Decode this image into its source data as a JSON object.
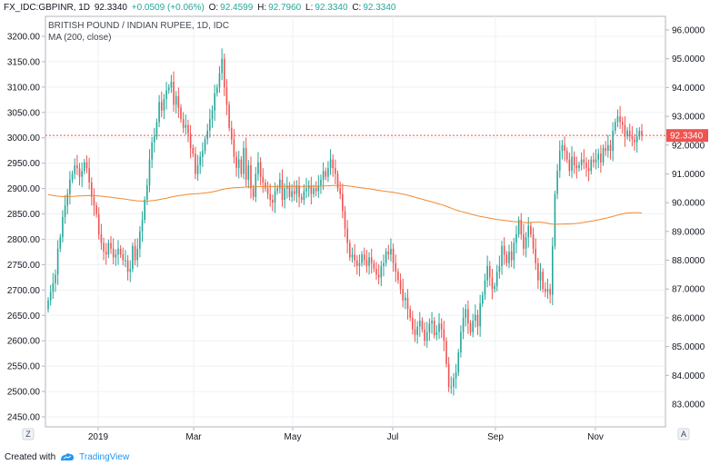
{
  "header": {
    "symbol": "FX_IDC:GBPINR, 1D",
    "last": "92.3340",
    "change": "+0.0509 (+0.06%)",
    "o_label": "O:",
    "o": "92.4599",
    "h_label": "H:",
    "h": "92.7960",
    "l_label": "L:",
    "l": "92.3340",
    "c_label": "C:",
    "c": "92.3340"
  },
  "legend": {
    "title": "BRITISH POUND / INDIAN RUPEE, 1D, IDC",
    "ma": "MA (200, close)"
  },
  "footer": {
    "created_with": "Created with",
    "brand": "TradingView"
  },
  "buttons": {
    "zoom": "Z",
    "auto": "A"
  },
  "colors": {
    "up": "#26a69a",
    "down": "#ef5350",
    "ma": "#f0882e",
    "price_line": "#ef5350",
    "price_badge": "#ef5350"
  },
  "chart_data": {
    "type": "candlestick",
    "left_axis": {
      "ticks": [
        2450,
        2500,
        2550,
        2600,
        2650,
        2700,
        2750,
        2800,
        2850,
        2900,
        2950,
        3000,
        3050,
        3100,
        3150,
        3200
      ],
      "labels": [
        "2450.00",
        "2500.00",
        "2550.00",
        "2600.00",
        "2650.00",
        "2700.00",
        "2750.00",
        "2800.00",
        "2850.00",
        "2900.00",
        "2950.00",
        "3000.00",
        "3050.00",
        "3100.00",
        "3150.00",
        "3200.00"
      ],
      "range": [
        2400,
        3225
      ]
    },
    "right_axis": {
      "ticks": [
        84,
        85,
        86,
        87,
        88,
        89,
        90,
        91,
        92,
        93,
        94,
        95,
        96
      ],
      "labels": [
        "84.0000",
        "85.0000",
        "86.0000",
        "87.0000",
        "88.0000",
        "89.0000",
        "90.0000",
        "91.0000",
        "92.0000",
        "93.0000",
        "94.0000",
        "95.0000",
        "96.0000"
      ],
      "extra_label": "83.0000",
      "current": "92.3340"
    },
    "x_labels": [
      "2019",
      "Mar",
      "May",
      "Jul",
      "Sep",
      "Nov"
    ],
    "ma_period": 200,
    "closes_inr": [
      86.6,
      86.9,
      87.2,
      87.5,
      88.4,
      88.8,
      89.5,
      89.9,
      90.3,
      90.8,
      91.0,
      91.3,
      91.2,
      90.9,
      91.1,
      91.4,
      91.2,
      90.7,
      90.2,
      89.9,
      89.6,
      88.9,
      88.6,
      88.3,
      88.2,
      88.6,
      88.4,
      88.1,
      88.2,
      88.4,
      88.2,
      88.0,
      88.0,
      87.6,
      87.7,
      88.5,
      88.0,
      88.4,
      89.0,
      89.4,
      90.1,
      90.6,
      91.5,
      92.1,
      92.3,
      92.8,
      93.5,
      93.2,
      93.6,
      93.9,
      94.0,
      94.2,
      93.4,
      93.7,
      93.3,
      92.9,
      92.6,
      92.7,
      92.4,
      91.9,
      91.7,
      91.0,
      91.3,
      91.6,
      91.8,
      92.2,
      92.5,
      92.9,
      93.2,
      93.8,
      94.0,
      94.5,
      95.0,
      94.0,
      93.4,
      92.6,
      92.2,
      91.6,
      91.2,
      91.5,
      91.0,
      91.9,
      90.8,
      91.3,
      90.5,
      90.2,
      91.0,
      91.4,
      90.9,
      90.7,
      90.5,
      90.3,
      90.1,
      90.0,
      90.4,
      90.5,
      90.8,
      90.1,
      90.5,
      90.6,
      90.2,
      90.4,
      90.3,
      90.6,
      90.2,
      90.1,
      90.4,
      90.5,
      90.6,
      90.3,
      90.5,
      90.4,
      90.6,
      90.8,
      91.1,
      90.9,
      91.2,
      91.5,
      91.2,
      91.0,
      90.5,
      90.3,
      89.7,
      89.1,
      88.6,
      88.1,
      88.2,
      88.0,
      87.8,
      87.9,
      88.2,
      88.0,
      87.8,
      88.1,
      87.9,
      87.7,
      87.5,
      87.4,
      87.8,
      87.9,
      88.3,
      88.2,
      88.4,
      87.9,
      87.6,
      87.3,
      87.0,
      86.6,
      86.7,
      86.3,
      86.0,
      85.6,
      85.4,
      85.7,
      85.9,
      85.6,
      85.2,
      85.5,
      85.8,
      85.9,
      85.4,
      85.5,
      85.8,
      85.6,
      85.2,
      84.4,
      83.6,
      83.6,
      83.9,
      84.1,
      84.8,
      85.5,
      86.0,
      86.3,
      85.8,
      85.5,
      85.9,
      86.1,
      85.7,
      86.5,
      86.8,
      87.3,
      87.8,
      87.4,
      87.0,
      87.1,
      87.6,
      87.8,
      88.5,
      88.2,
      87.9,
      88.3,
      88.0,
      88.6,
      88.9,
      89.4,
      88.9,
      88.4,
      88.8,
      89.2,
      88.9,
      88.4,
      87.9,
      87.3,
      87.6,
      87.0,
      86.9,
      87.0,
      86.8,
      88.5,
      90.3,
      91.1,
      91.8,
      92.0,
      91.8,
      91.5,
      91.1,
      91.6,
      91.3,
      91.2,
      91.3,
      91.5,
      91.4,
      91.2,
      91.1,
      91.5,
      91.4,
      91.5,
      91.7,
      91.4,
      91.9,
      91.8,
      92.0,
      91.8,
      92.5,
      92.8,
      93.0,
      92.8,
      92.7,
      92.3,
      92.5,
      92.3,
      92.2,
      92.1,
      92.3,
      92.5,
      92.33
    ]
  }
}
